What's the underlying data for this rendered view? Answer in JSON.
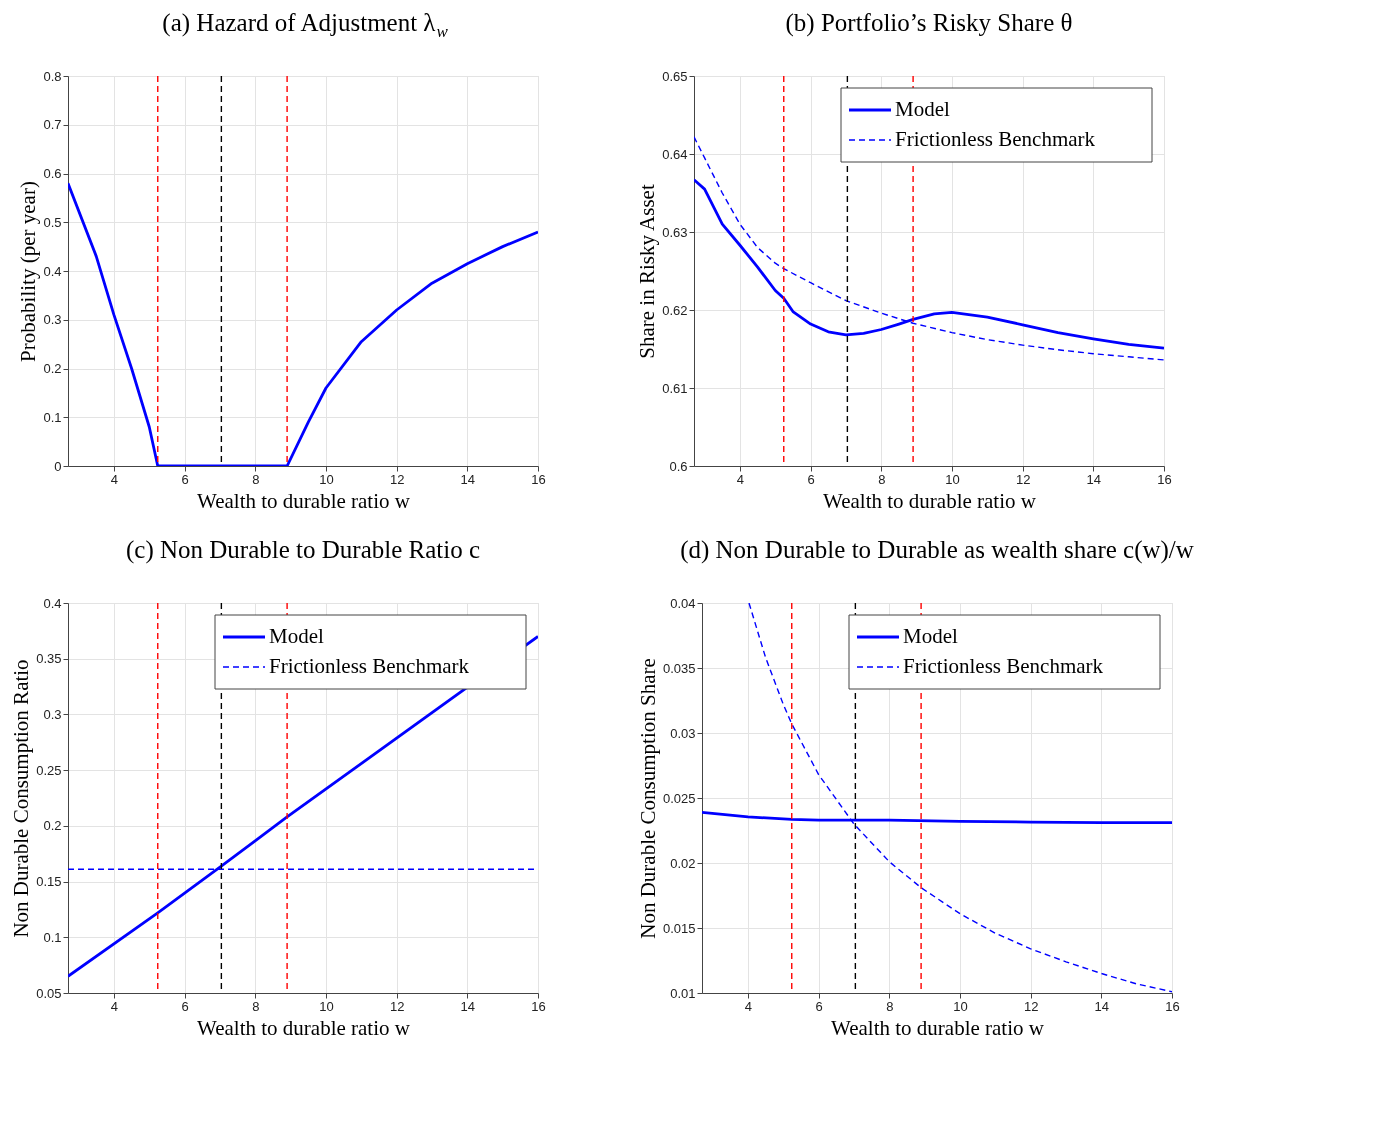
{
  "chart_data": [
    {
      "type": "line",
      "title": "(a) Hazard of Adjustment λ$_{w}$",
      "xlabel": "Wealth to durable ratio w",
      "ylabel": "Probability (per year)",
      "xlim": [
        2.7,
        16
      ],
      "xticks": [
        4,
        6,
        8,
        10,
        12,
        14,
        16
      ],
      "ylim": [
        0,
        0.8
      ],
      "yticks": [
        0,
        0.1,
        0.2,
        0.3,
        0.4,
        0.5,
        0.6,
        0.7,
        0.8
      ],
      "grid": true,
      "legend": false,
      "series": [
        {
          "color": "#0000ff",
          "line_style": "solid",
          "x": [
            2.7,
            3.5,
            4,
            4.5,
            5,
            5.24,
            7,
            8.9,
            9.5,
            10,
            11,
            12,
            13,
            14,
            15,
            16
          ],
          "values": [
            0.58,
            0.43,
            0.31,
            0.2,
            0.08,
            0,
            0,
            0,
            0.09,
            0.16,
            0.255,
            0.32,
            0.375,
            0.415,
            0.45,
            0.48
          ]
        }
      ],
      "ref_lines": [
        {
          "axis": "x",
          "value": 5.24,
          "color": "#ff0000",
          "line_style": "dashed"
        },
        {
          "axis": "x",
          "value": 7.04,
          "color": "#000000",
          "line_style": "dashed"
        },
        {
          "axis": "x",
          "value": 8.9,
          "color": "#ff0000",
          "line_style": "dashed"
        }
      ]
    },
    {
      "type": "line",
      "title": "(b) Portfolio’s Risky Share θ",
      "xlabel": "Wealth to durable ratio w",
      "ylabel": "Share in Risky Asset",
      "xlim": [
        2.7,
        16
      ],
      "xticks": [
        4,
        6,
        8,
        10,
        12,
        14,
        16
      ],
      "ylim": [
        0.6,
        0.65
      ],
      "yticks": [
        0.6,
        0.61,
        0.62,
        0.63,
        0.64,
        0.65
      ],
      "grid": true,
      "legend": "top right",
      "series": [
        {
          "name": "Model",
          "color": "#0000ff",
          "line_style": "solid",
          "x": [
            2.7,
            3,
            3.5,
            4,
            4.5,
            5,
            5.24,
            5.5,
            6,
            6.5,
            7,
            7.5,
            8,
            8.5,
            8.9,
            9.5,
            10,
            11,
            12,
            13,
            14,
            15,
            16
          ],
          "values": [
            0.6367,
            0.6355,
            0.631,
            0.6283,
            0.6255,
            0.6225,
            0.6215,
            0.6198,
            0.6182,
            0.6172,
            0.6168,
            0.617,
            0.6175,
            0.6182,
            0.6188,
            0.6195,
            0.6197,
            0.6191,
            0.6181,
            0.6171,
            0.6163,
            0.6156,
            0.6151
          ]
        },
        {
          "name": "Frictionless Benchmark",
          "color": "#0000ff",
          "line_style": "dashed",
          "x": [
            2.7,
            3,
            3.5,
            4,
            4.5,
            5,
            5.24,
            6,
            7,
            8,
            8.9,
            10,
            11,
            12,
            13,
            14,
            15,
            16
          ],
          "values": [
            0.6422,
            0.6395,
            0.635,
            0.631,
            0.628,
            0.626,
            0.6253,
            0.6235,
            0.6212,
            0.6196,
            0.6183,
            0.6171,
            0.6162,
            0.6155,
            0.6149,
            0.6144,
            0.614,
            0.6136
          ]
        }
      ],
      "ref_lines": [
        {
          "axis": "x",
          "value": 5.24,
          "color": "#ff0000",
          "line_style": "dashed"
        },
        {
          "axis": "x",
          "value": 7.04,
          "color": "#000000",
          "line_style": "dashed"
        },
        {
          "axis": "x",
          "value": 8.9,
          "color": "#ff0000",
          "line_style": "dashed"
        }
      ]
    },
    {
      "type": "line",
      "title": "(c) Non Durable to Durable Ratio c",
      "xlabel": "Wealth to durable ratio w",
      "ylabel": "Non Durable Consumption Ratio",
      "xlim": [
        2.7,
        16
      ],
      "xticks": [
        4,
        6,
        8,
        10,
        12,
        14,
        16
      ],
      "ylim": [
        0.05,
        0.4
      ],
      "yticks": [
        0.05,
        0.1,
        0.15,
        0.2,
        0.25,
        0.3,
        0.35,
        0.4
      ],
      "grid": true,
      "legend": "top right",
      "series": [
        {
          "name": "Model",
          "color": "#0000ff",
          "line_style": "solid",
          "x": [
            2.7,
            5.24,
            7,
            8.9,
            16
          ],
          "values": [
            0.065,
            0.122,
            0.163,
            0.208,
            0.37
          ]
        },
        {
          "name": "Frictionless Benchmark",
          "color": "#0000ff",
          "line_style": "dashed",
          "x": [
            2.7,
            16
          ],
          "values": [
            0.161,
            0.161
          ]
        }
      ],
      "ref_lines": [
        {
          "axis": "x",
          "value": 5.24,
          "color": "#ff0000",
          "line_style": "dashed"
        },
        {
          "axis": "x",
          "value": 7.04,
          "color": "#000000",
          "line_style": "dashed"
        },
        {
          "axis": "x",
          "value": 8.9,
          "color": "#ff0000",
          "line_style": "dashed"
        }
      ]
    },
    {
      "type": "line",
      "title": "(d) Non Durable to Durable as wealth share c(w)/w",
      "xlabel": "Wealth to durable ratio w",
      "ylabel": "Non Durable Consumption Share",
      "xlim": [
        2.7,
        16
      ],
      "xticks": [
        4,
        6,
        8,
        10,
        12,
        14,
        16
      ],
      "ylim": [
        0.01,
        0.04
      ],
      "yticks": [
        0.01,
        0.015,
        0.02,
        0.025,
        0.03,
        0.035,
        0.04
      ],
      "grid": true,
      "legend": "top right",
      "series": [
        {
          "name": "Model",
          "color": "#0000ff",
          "line_style": "solid",
          "x": [
            2.7,
            4,
            5.24,
            6,
            8,
            10,
            12,
            14,
            16
          ],
          "values": [
            0.0239,
            0.02355,
            0.02335,
            0.0233,
            0.0233,
            0.0232,
            0.02315,
            0.0231,
            0.0231
          ]
        },
        {
          "name": "Frictionless Benchmark",
          "color": "#0000ff",
          "line_style": "dashed",
          "x": [
            4.03,
            4.5,
            5,
            5.24,
            6,
            7,
            8,
            8.9,
            10,
            11,
            12,
            13,
            14,
            15,
            16
          ],
          "values": [
            0.04,
            0.0358,
            0.0322,
            0.0307,
            0.0268,
            0.023,
            0.0201,
            0.0181,
            0.0161,
            0.0146,
            0.0134,
            0.0124,
            0.0115,
            0.0107,
            0.0101
          ]
        }
      ],
      "ref_lines": [
        {
          "axis": "x",
          "value": 5.24,
          "color": "#ff0000",
          "line_style": "dashed"
        },
        {
          "axis": "x",
          "value": 7.04,
          "color": "#000000",
          "line_style": "dashed"
        },
        {
          "axis": "x",
          "value": 8.9,
          "color": "#ff0000",
          "line_style": "dashed"
        }
      ]
    }
  ]
}
